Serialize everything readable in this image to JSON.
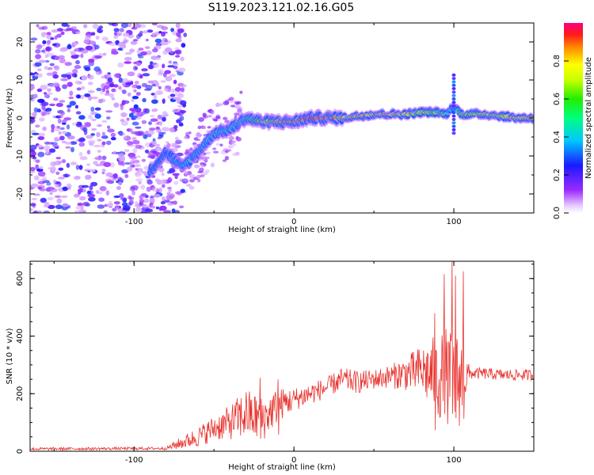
{
  "figure": {
    "title": "S119.2023.121.02.16.G05"
  },
  "chart_data": [
    {
      "type": "heatmap",
      "xlabel": "Height of straight line (km)",
      "ylabel": "Frequency (Hz)",
      "xlim": [
        -165,
        150
      ],
      "ylim": [
        -25,
        25
      ],
      "x_ticks": [
        "-100",
        "0",
        "100"
      ],
      "y_ticks": [
        "20",
        "10",
        "0",
        "-10",
        "-20"
      ],
      "colorbar": {
        "label": "Normalized spectral amplitude",
        "ticks": [
          "0.0",
          "0.2",
          "0.4",
          "0.6",
          "0.8"
        ],
        "range": [
          0,
          1
        ]
      },
      "ridge": {
        "x": [
          -90,
          -80,
          -70,
          -60,
          -50,
          -40,
          -30,
          -20,
          -10,
          0,
          10,
          20,
          30,
          40,
          50,
          60,
          70,
          80,
          90,
          95,
          100,
          105,
          110,
          120,
          130,
          140,
          150
        ],
        "freq": [
          -14,
          -9,
          -13,
          -9,
          -4,
          -3,
          0,
          -1,
          -1,
          -1,
          0,
          0,
          0,
          0.5,
          1,
          1,
          1,
          1.5,
          1.5,
          1,
          3,
          1,
          1,
          1,
          0.5,
          0,
          0
        ],
        "amplitude": [
          0.3,
          0.3,
          0.45,
          0.4,
          0.45,
          0.45,
          0.5,
          0.75,
          0.85,
          0.9,
          0.95,
          0.95,
          0.85,
          0.85,
          0.9,
          0.85,
          0.8,
          0.75,
          0.6,
          0.5,
          0.3,
          0.7,
          0.7,
          0.75,
          0.8,
          0.85,
          0.85
        ]
      },
      "noise_region_x": [
        -165,
        -68
      ]
    },
    {
      "type": "line",
      "xlabel": "Height of straight line (km)",
      "ylabel": "SNR (10 * v/v)",
      "xlim": [
        -165,
        150
      ],
      "ylim": [
        0,
        660
      ],
      "x_ticks": [
        "-100",
        "0",
        "100"
      ],
      "y_ticks": [
        "0",
        "200",
        "400",
        "600"
      ],
      "color": "#e8332e",
      "envelope": {
        "x": [
          -165,
          -80,
          -75,
          -60,
          -50,
          -40,
          -30,
          -20,
          -10,
          0,
          10,
          20,
          30,
          40,
          50,
          60,
          70,
          80,
          90,
          95,
          100,
          105,
          110,
          120,
          130,
          140,
          150
        ],
        "y": [
          8,
          10,
          20,
          50,
          80,
          100,
          130,
          110,
          160,
          180,
          200,
          220,
          250,
          240,
          250,
          260,
          270,
          280,
          260,
          250,
          240,
          250,
          270,
          270,
          265,
          265,
          265
        ],
        "spread": [
          5,
          5,
          15,
          35,
          45,
          60,
          90,
          80,
          60,
          40,
          40,
          35,
          40,
          40,
          35,
          40,
          60,
          90,
          150,
          180,
          180,
          160,
          20,
          20,
          20,
          20,
          20
        ]
      },
      "spikes": [
        {
          "x": -21,
          "y": 255
        },
        {
          "x": -10,
          "y": 250
        },
        {
          "x": 88,
          "y": 480
        },
        {
          "x": 94,
          "y": 615
        },
        {
          "x": 99,
          "y": 660
        },
        {
          "x": 101,
          "y": 610
        },
        {
          "x": 106,
          "y": 625
        }
      ]
    }
  ]
}
